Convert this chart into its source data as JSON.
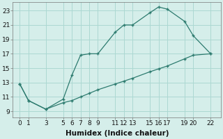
{
  "line1_x": [
    0,
    1,
    3,
    5,
    6,
    7,
    8,
    9,
    11,
    12,
    13,
    15,
    16,
    17,
    19,
    20,
    22
  ],
  "line1_y": [
    12.8,
    10.5,
    9.3,
    10.7,
    14.0,
    16.8,
    17.0,
    17.0,
    20.0,
    21.0,
    21.0,
    22.7,
    23.5,
    23.2,
    21.5,
    19.5,
    17.0
  ],
  "line2_x": [
    0,
    1,
    3,
    5,
    6,
    7,
    8,
    9,
    11,
    12,
    13,
    15,
    16,
    17,
    19,
    20,
    22
  ],
  "line2_y": [
    12.8,
    10.5,
    9.3,
    10.2,
    10.5,
    11.0,
    11.5,
    12.0,
    12.8,
    13.2,
    13.6,
    14.5,
    14.9,
    15.3,
    16.3,
    16.8,
    17.0
  ],
  "line_color": "#2d7b6f",
  "background_color": "#d5eeea",
  "grid_color": "#acd8d2",
  "xlabel": "Humidex (Indice chaleur)",
  "xticks": [
    0,
    1,
    3,
    5,
    6,
    7,
    8,
    9,
    11,
    12,
    13,
    15,
    16,
    17,
    19,
    20,
    22
  ],
  "yticks": [
    9,
    11,
    13,
    15,
    17,
    19,
    21,
    23
  ],
  "xlim": [
    -0.8,
    23.2
  ],
  "ylim": [
    8.2,
    24.2
  ],
  "xlabel_fontsize": 7.5,
  "tick_fontsize": 6.5
}
